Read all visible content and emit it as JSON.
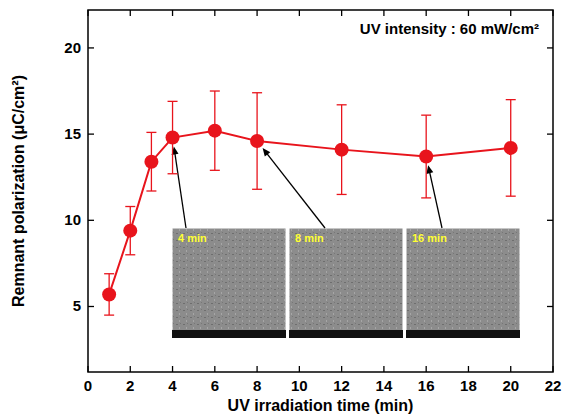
{
  "chart_data": {
    "type": "line",
    "annotation": "UV intensity : 60 mW/cm²",
    "x_label": "UV irradiation time (min)",
    "y_label": "Remnant polarization (μC/cm²)",
    "x": [
      1,
      2,
      3,
      4,
      6,
      8,
      12,
      16,
      20
    ],
    "series": [
      {
        "color": "#e8141c",
        "marker": "circle",
        "line_style": "solid",
        "values": [
          5.7,
          9.4,
          13.4,
          14.8,
          15.2,
          14.6,
          14.1,
          13.7,
          14.2
        ],
        "errors": [
          1.2,
          1.4,
          1.7,
          2.1,
          2.3,
          2.8,
          2.6,
          2.4,
          2.8
        ]
      }
    ],
    "xlim": [
      0,
      22
    ],
    "xticks": [
      0,
      2,
      4,
      6,
      8,
      10,
      12,
      14,
      16,
      18,
      20,
      22
    ],
    "ylim": [
      1.2,
      22.2
    ],
    "yticks": [
      5,
      10,
      15,
      20
    ],
    "grid": false,
    "insets": [
      {
        "label": "4 min",
        "x": 4
      },
      {
        "label": "8 min",
        "x": 8
      },
      {
        "label": "16 min",
        "x": 16
      }
    ]
  }
}
